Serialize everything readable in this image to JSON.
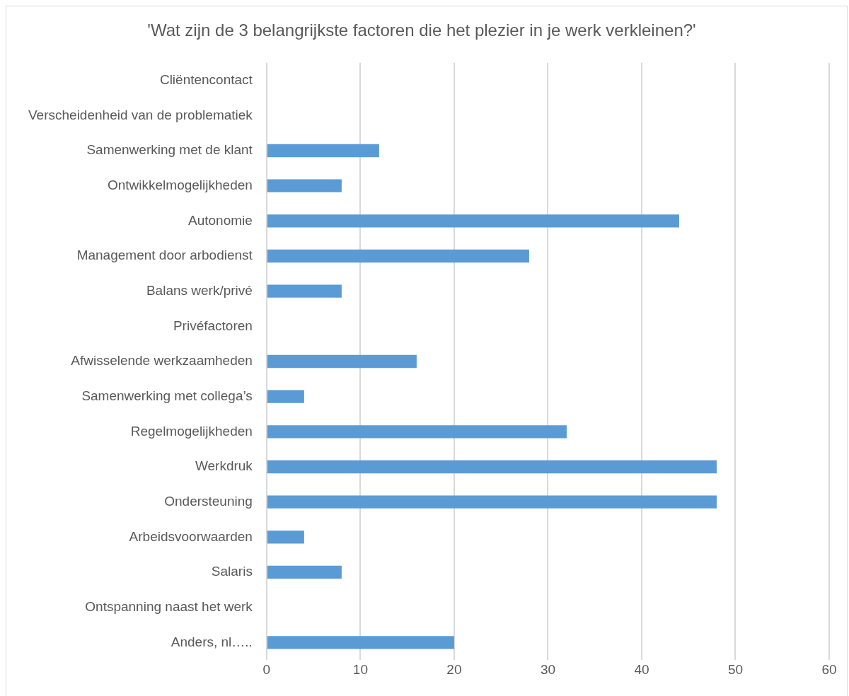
{
  "chart_data": {
    "type": "bar",
    "orientation": "horizontal",
    "title": "'Wat zijn de 3 belangrijkste factoren die het plezier in je werk verkleinen?'",
    "categories": [
      "Cliëntencontact",
      "Verscheidenheid van de problematiek",
      "Samenwerking met de klant",
      "Ontwikkelmogelijkheden",
      "Autonomie",
      "Management door arbodienst",
      "Balans werk/privé",
      "Privéfactoren",
      "Afwisselende werkzaamheden",
      "Samenwerking met collega’s",
      "Regelmogelijkheden",
      "Werkdruk",
      "Ondersteuning",
      "Arbeidsvoorwaarden",
      "Salaris",
      "Ontspanning naast het werk",
      "Anders, nl….."
    ],
    "values": [
      0,
      0,
      12,
      8,
      44,
      28,
      8,
      0,
      16,
      4,
      32,
      48,
      48,
      4,
      8,
      0,
      20
    ],
    "color": "#5b9bd5",
    "xlim": [
      0,
      60
    ],
    "xticks": [
      0,
      10,
      20,
      30,
      40,
      50,
      60
    ],
    "grid": "x",
    "legend": false
  }
}
